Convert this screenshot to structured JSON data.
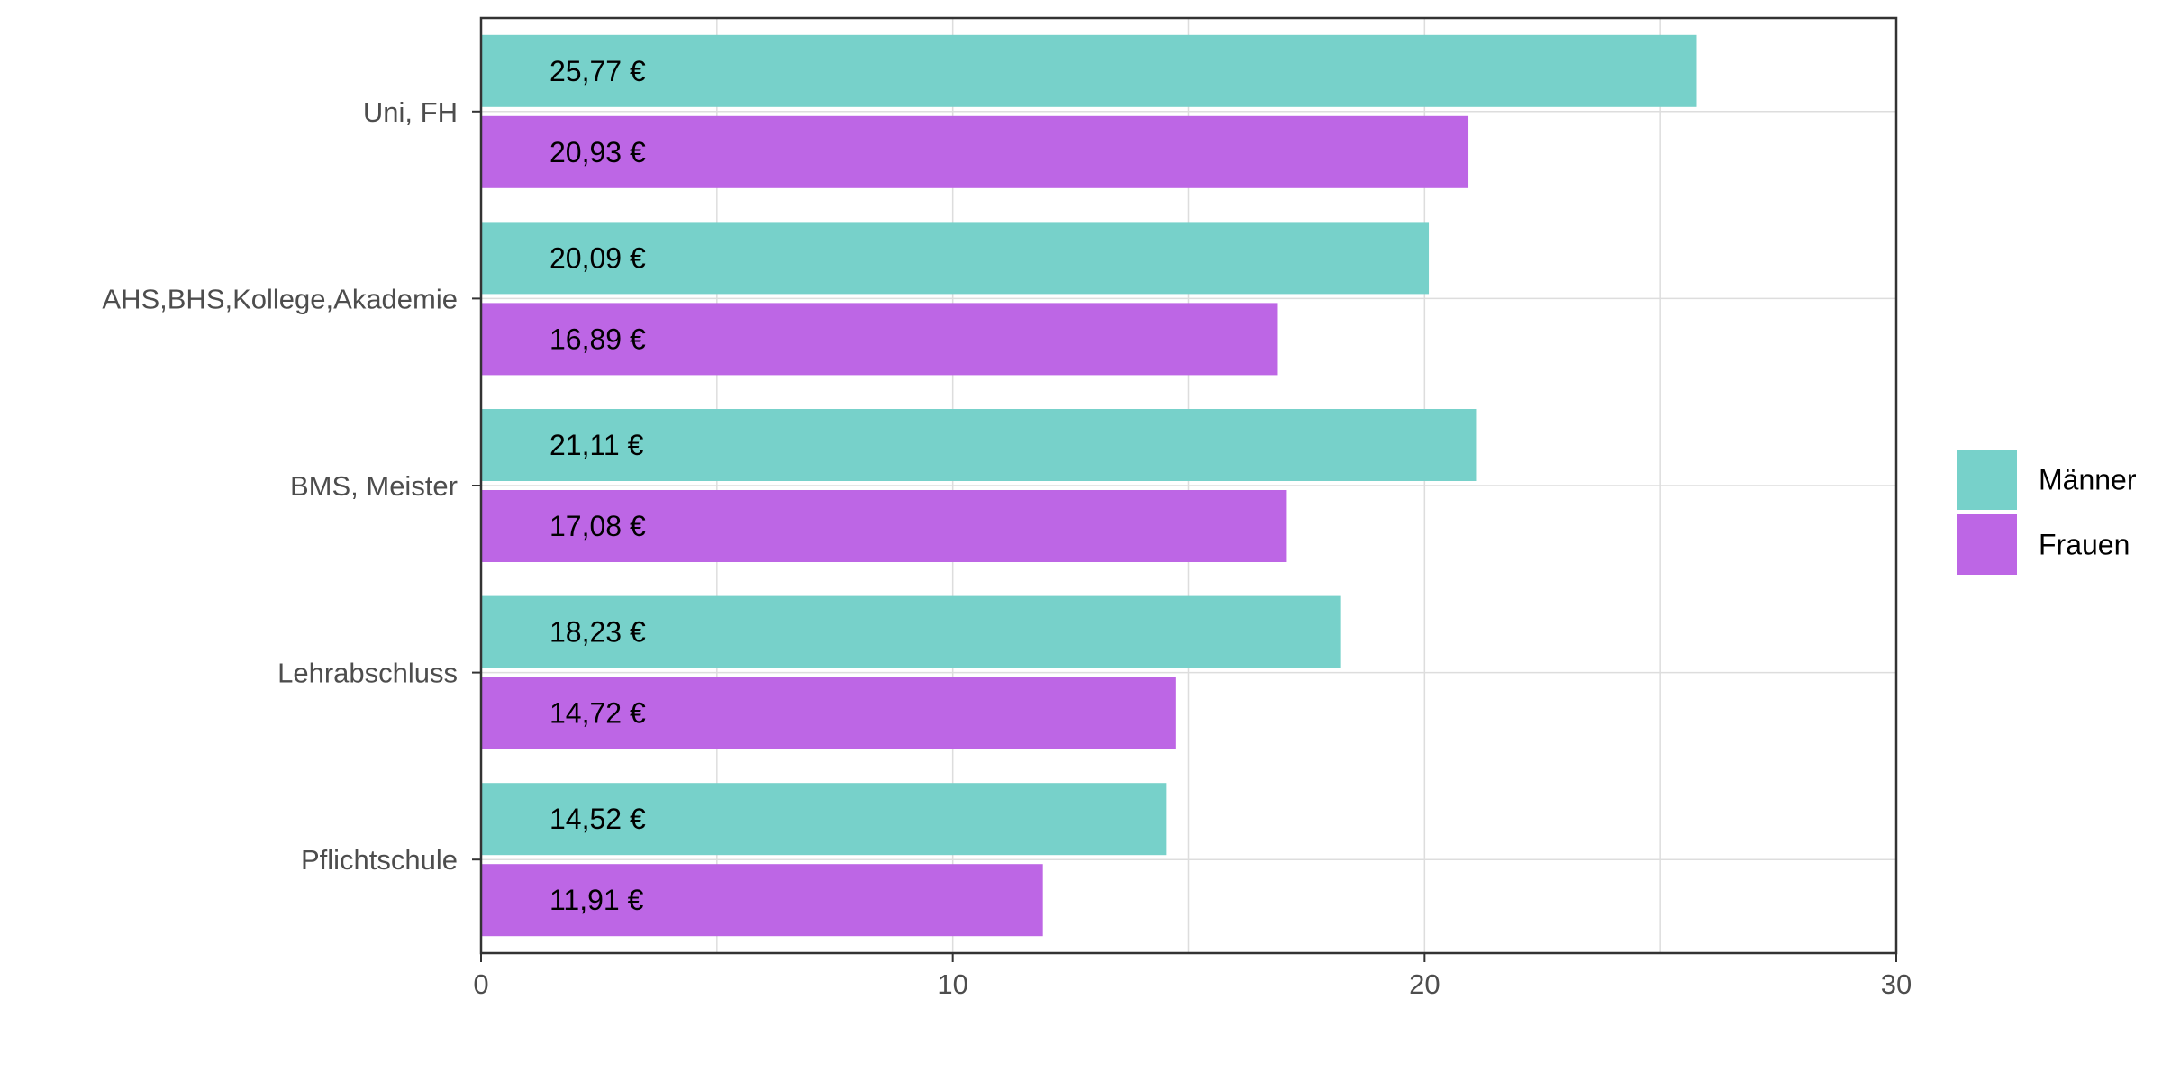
{
  "chart_data": {
    "type": "bar",
    "orientation": "horizontal",
    "categories": [
      "Uni, FH",
      "AHS,BHS,Kollege,Akademie",
      "BMS, Meister",
      "Lehrabschluss",
      "Pflichtschule"
    ],
    "series": [
      {
        "name": "Männer",
        "color": "#77d1ca",
        "values": [
          25.77,
          20.09,
          21.11,
          18.23,
          14.52
        ],
        "labels": [
          "25,77 €",
          "20,09 €",
          "21,11 €",
          "18,23 €",
          "14,52 €"
        ]
      },
      {
        "name": "Frauen",
        "color": "#bd66e5",
        "values": [
          20.93,
          16.89,
          17.08,
          14.72,
          11.91
        ],
        "labels": [
          "20,93 €",
          "16,89 €",
          "17,08 €",
          "14,72 €",
          "11,91 €"
        ]
      }
    ],
    "xlim": [
      0,
      30
    ],
    "x_ticks": [
      0,
      10,
      20,
      30
    ],
    "x_tick_labels": [
      "0",
      "10",
      "20",
      "30"
    ],
    "grid": true,
    "legend_position": "right",
    "title": "",
    "xlabel": "",
    "ylabel": ""
  }
}
